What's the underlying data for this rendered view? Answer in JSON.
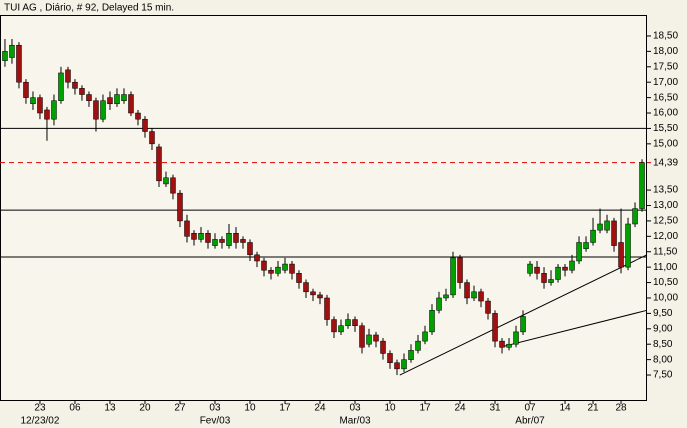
{
  "chart_data": {
    "type": "candlestick",
    "title": "TUI  AG , Diário, # 92, Delayed 15 min.",
    "categories": [
      null,
      null,
      null,
      null,
      null,
      "23",
      null,
      null,
      null,
      null,
      "06",
      null,
      null,
      null,
      null,
      "13",
      null,
      null,
      null,
      null,
      "20",
      null,
      null,
      null,
      null,
      "27",
      null,
      null,
      null,
      null,
      "03",
      null,
      null,
      null,
      null,
      "10",
      null,
      null,
      null,
      null,
      "17",
      null,
      null,
      null,
      null,
      "24",
      null,
      null,
      null,
      null,
      "03",
      null,
      null,
      null,
      null,
      "10",
      null,
      null,
      null,
      null,
      "17",
      null,
      null,
      null,
      null,
      "24",
      null,
      null,
      null,
      null,
      "31",
      null,
      null,
      null,
      null,
      "07",
      null,
      null,
      null,
      null,
      "14",
      null,
      null,
      null,
      "21",
      null,
      null,
      null,
      "28",
      null,
      null,
      null
    ],
    "major_labels": [
      {
        "index": 5,
        "label": "12/23/02"
      },
      {
        "index": 30,
        "label": "Fev/03"
      },
      {
        "index": 50,
        "label": "Mar/03"
      },
      {
        "index": 75,
        "label": "Abr/07"
      }
    ],
    "open": [
      17.7,
      17.8,
      18.2,
      17.0,
      16.3,
      16.5,
      16.1,
      15.8,
      16.4,
      17.4,
      17.0,
      16.8,
      16.6,
      16.4,
      15.8,
      16.5,
      16.3,
      16.4,
      16.6,
      16.0,
      15.8,
      15.4,
      14.9,
      13.7,
      13.9,
      13.4,
      12.5,
      12.1,
      11.9,
      12.1,
      11.7,
      11.9,
      11.7,
      12.1,
      11.9,
      11.8,
      11.4,
      11.2,
      10.9,
      10.8,
      10.9,
      11.1,
      10.8,
      10.5,
      10.2,
      10.1,
      10.0,
      9.3,
      8.9,
      9.1,
      9.3,
      9.1,
      8.5,
      8.8,
      8.6,
      8.2,
      7.9,
      7.7,
      8.0,
      8.3,
      8.6,
      8.9,
      9.6,
      10.0,
      10.1,
      11.3,
      10.5,
      10.0,
      10.2,
      9.9,
      9.5,
      8.6,
      8.4,
      8.5,
      8.9,
      10.8,
      11.0,
      10.8,
      10.5,
      10.6,
      11.0,
      10.9,
      11.2,
      11.6,
      11.8,
      12.2,
      12.2,
      12.5,
      11.8,
      11.0,
      12.4,
      12.9
    ],
    "high": [
      18.4,
      18.4,
      18.3,
      17.1,
      16.7,
      16.6,
      16.2,
      16.6,
      17.5,
      17.5,
      17.1,
      16.9,
      16.7,
      16.5,
      16.6,
      16.7,
      16.8,
      16.8,
      16.7,
      16.1,
      15.9,
      15.5,
      15.0,
      14.1,
      14.0,
      13.5,
      12.7,
      12.2,
      12.3,
      12.2,
      12.1,
      12.0,
      12.4,
      12.3,
      12.0,
      11.9,
      11.5,
      11.3,
      11.0,
      11.2,
      11.3,
      11.2,
      10.9,
      10.6,
      10.3,
      10.2,
      10.1,
      9.4,
      9.3,
      9.5,
      9.4,
      9.2,
      9.0,
      8.9,
      8.7,
      8.3,
      8.0,
      8.2,
      8.5,
      8.8,
      9.1,
      9.8,
      10.2,
      10.3,
      11.5,
      11.4,
      10.6,
      10.4,
      10.3,
      10.0,
      9.6,
      8.7,
      8.7,
      9.1,
      9.6,
      11.2,
      11.2,
      11.0,
      10.9,
      11.1,
      11.1,
      11.4,
      12.0,
      12.0,
      12.6,
      12.9,
      12.7,
      12.6,
      12.9,
      12.6,
      13.1,
      14.5
    ],
    "low": [
      17.5,
      17.6,
      16.8,
      16.3,
      16.1,
      15.8,
      15.1,
      15.6,
      16.3,
      16.8,
      16.6,
      16.4,
      16.2,
      15.4,
      15.7,
      16.1,
      16.2,
      16.3,
      15.9,
      15.6,
      15.2,
      14.8,
      13.6,
      13.6,
      13.2,
      12.3,
      11.8,
      11.7,
      11.8,
      11.6,
      11.6,
      11.6,
      11.6,
      11.6,
      11.6,
      11.2,
      11.0,
      10.7,
      10.6,
      10.7,
      10.8,
      10.6,
      10.3,
      10.0,
      9.9,
      9.8,
      9.1,
      8.7,
      8.8,
      9.0,
      8.9,
      8.2,
      8.4,
      8.4,
      8.0,
      7.7,
      7.5,
      7.6,
      7.9,
      8.2,
      8.5,
      8.8,
      9.5,
      9.9,
      10.0,
      10.3,
      9.8,
      9.9,
      9.7,
      9.3,
      8.4,
      8.2,
      8.3,
      8.4,
      8.8,
      10.7,
      10.6,
      10.3,
      10.4,
      10.5,
      10.7,
      10.8,
      11.1,
      11.5,
      11.7,
      12.1,
      12.1,
      11.5,
      10.8,
      10.9,
      12.3,
      12.8
    ],
    "close": [
      18.0,
      18.2,
      17.0,
      16.5,
      16.5,
      16.0,
      15.8,
      16.4,
      17.3,
      17.0,
      16.8,
      16.6,
      16.4,
      15.8,
      16.4,
      16.3,
      16.6,
      16.6,
      16.0,
      15.8,
      15.4,
      15.0,
      13.8,
      13.9,
      13.4,
      12.5,
      12.0,
      11.9,
      12.1,
      11.8,
      11.9,
      11.8,
      12.1,
      11.8,
      11.8,
      11.4,
      11.2,
      10.9,
      10.8,
      11.0,
      11.1,
      10.8,
      10.5,
      10.2,
      10.1,
      10.0,
      9.3,
      8.9,
      9.1,
      9.3,
      9.1,
      8.4,
      8.8,
      8.6,
      8.2,
      7.9,
      7.7,
      8.0,
      8.3,
      8.6,
      8.9,
      9.6,
      10.0,
      10.1,
      11.3,
      10.5,
      10.0,
      10.2,
      9.9,
      9.5,
      8.6,
      8.4,
      8.5,
      8.9,
      9.4,
      11.1,
      10.8,
      10.5,
      10.6,
      11.0,
      10.9,
      11.2,
      11.8,
      11.8,
      12.2,
      12.4,
      12.5,
      11.7,
      11.0,
      12.4,
      12.9,
      14.39
    ],
    "up_color": "#00a000",
    "down_color": "#a01010",
    "xlim": [
      -0.71,
      91.71
    ],
    "ylim": [
      6.69,
      19.18
    ],
    "yticks": [
      {
        "value": 7.5,
        "label": "7,50"
      },
      {
        "value": 8,
        "label": "8,00"
      },
      {
        "value": 8.5,
        "label": "8,50"
      },
      {
        "value": 9,
        "label": "9,00"
      },
      {
        "value": 9.5,
        "label": "9,50"
      },
      {
        "value": 10,
        "label": "10,00"
      },
      {
        "value": 10.5,
        "label": "10,50"
      },
      {
        "value": 11,
        "label": "11,00"
      },
      {
        "value": 11.5,
        "label": "11,50"
      },
      {
        "value": 12,
        "label": "12,00"
      },
      {
        "value": 12.5,
        "label": "12,50"
      },
      {
        "value": 13.5,
        "label": "13,50"
      },
      {
        "value": 15,
        "label": "15,00"
      },
      {
        "value": 15.5,
        "label": "15,50"
      },
      {
        "value": 16,
        "label": "16,00"
      },
      {
        "value": 16.5,
        "label": "16,50"
      },
      {
        "value": 17,
        "label": "17,00"
      },
      {
        "value": 17.5,
        "label": "17,50"
      },
      {
        "value": 18,
        "label": "18,00"
      },
      {
        "value": 18.5,
        "label": "18,50"
      }
    ],
    "markers": [
      {
        "value": 14.39,
        "label": "14,39",
        "color": "#e00000"
      },
      {
        "value": 13.0,
        "label": "13,00",
        "color": "#0000e0"
      }
    ],
    "hlines": [
      15.5,
      12.85,
      11.33
    ],
    "dashed_line": {
      "value": 14.39,
      "color": "#e00000"
    },
    "trendlines": [
      {
        "x": [
          56.4,
          91.7
        ],
        "y": [
          7.5,
          11.4
        ]
      },
      {
        "x": [
          70.7,
          91.7
        ],
        "y": [
          8.4,
          9.6
        ]
      }
    ]
  }
}
